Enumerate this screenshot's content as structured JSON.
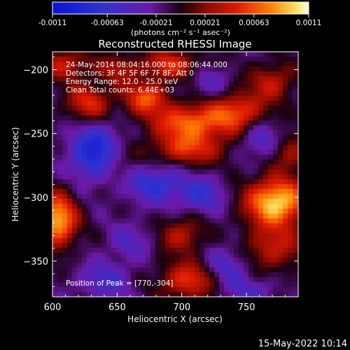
{
  "colorbar": {
    "tick_labels": [
      "-0.0011",
      "-0.00063",
      "-0.00021",
      "0.00021",
      "0.00063",
      "0.0011"
    ],
    "tick_values": [
      -0.0011,
      -0.00063,
      -0.00021,
      0.00021,
      0.00063,
      0.0011
    ],
    "range": [
      -0.0011,
      0.0011
    ],
    "units": "(photons cm⁻² s⁻¹ asec⁻²)"
  },
  "chart_data": {
    "type": "heatmap",
    "title": "Reconstructed RHESSI Image",
    "xlabel": "Heliocentric X (arcsec)",
    "ylabel": "Heliocentric Y (arcsec)",
    "xlim": [
      600,
      790
    ],
    "ylim": [
      -378,
      -186
    ],
    "x_ticks": [
      600,
      650,
      700,
      750
    ],
    "x_tick_labels": [
      "600",
      "650",
      "700",
      "750"
    ],
    "y_ticks": [
      -350,
      -300,
      -250,
      -200
    ],
    "y_tick_labels": [
      "−350",
      "−300",
      "−250",
      "−200"
    ],
    "peak": [
      770,
      -304
    ],
    "value_range": [
      -0.0011,
      0.0011
    ],
    "blobs": [
      {
        "x": 773,
        "y": -304,
        "amp": 0.00115,
        "sx": 16,
        "sy": 13
      },
      {
        "x": 604,
        "y": -318,
        "amp": 0.00105,
        "sx": 10,
        "sy": 14
      },
      {
        "x": 708,
        "y": -241,
        "amp": 0.0008,
        "sx": 22,
        "sy": 10
      },
      {
        "x": 745,
        "y": -232,
        "amp": 0.0006,
        "sx": 14,
        "sy": 10
      },
      {
        "x": 672,
        "y": -222,
        "amp": 0.0007,
        "sx": 12,
        "sy": 9
      },
      {
        "x": 705,
        "y": -262,
        "amp": 0.0006,
        "sx": 20,
        "sy": 9
      },
      {
        "x": 628,
        "y": -226,
        "amp": 0.0006,
        "sx": 12,
        "sy": 10
      },
      {
        "x": 610,
        "y": -196,
        "amp": 0.0005,
        "sx": 14,
        "sy": 9
      },
      {
        "x": 690,
        "y": -196,
        "amp": 0.0006,
        "sx": 16,
        "sy": 8
      },
      {
        "x": 648,
        "y": -270,
        "amp": 0.0004,
        "sx": 10,
        "sy": 10
      },
      {
        "x": 700,
        "y": -330,
        "amp": 0.00048,
        "sx": 12,
        "sy": 10
      },
      {
        "x": 705,
        "y": -365,
        "amp": 0.00065,
        "sx": 15,
        "sy": 10
      },
      {
        "x": 770,
        "y": -340,
        "amp": 0.0005,
        "sx": 16,
        "sy": 12
      },
      {
        "x": 785,
        "y": -265,
        "amp": 0.0004,
        "sx": 10,
        "sy": 10
      },
      {
        "x": 770,
        "y": -210,
        "amp": 0.0005,
        "sx": 12,
        "sy": 10
      },
      {
        "x": 650,
        "y": -200,
        "amp": 0.0004,
        "sx": 10,
        "sy": 8
      },
      {
        "x": 635,
        "y": -265,
        "amp": -0.0009,
        "sx": 14,
        "sy": 14
      },
      {
        "x": 680,
        "y": -290,
        "amp": -0.0006,
        "sx": 14,
        "sy": 10
      },
      {
        "x": 715,
        "y": -298,
        "amp": -0.0005,
        "sx": 12,
        "sy": 10
      },
      {
        "x": 640,
        "y": -365,
        "amp": -0.0004,
        "sx": 14,
        "sy": 10
      },
      {
        "x": 735,
        "y": -355,
        "amp": -0.0004,
        "sx": 12,
        "sy": 12
      },
      {
        "x": 760,
        "y": -255,
        "amp": -0.0004,
        "sx": 10,
        "sy": 10
      },
      {
        "x": 720,
        "y": -210,
        "amp": -0.0003,
        "sx": 10,
        "sy": 8
      },
      {
        "x": 755,
        "y": -375,
        "amp": -0.0003,
        "sx": 12,
        "sy": 8
      },
      {
        "x": 660,
        "y": -335,
        "amp": -0.0003,
        "sx": 12,
        "sy": 10
      }
    ]
  },
  "annotations": {
    "time_range": "24-May-2014 08:04:16.000 to 08:06:44.000",
    "detectors": "Detectors: 3F 4F 5F 6F 7F 8F, Att 0",
    "energy": "Energy Range: 12.0 - 25.0 keV",
    "method": "Clean     Total counts: 6.44E+03",
    "peak": "Position of Peak = [770,-304]"
  },
  "footer": {
    "timestamp": "15-May-2022 10:14"
  }
}
